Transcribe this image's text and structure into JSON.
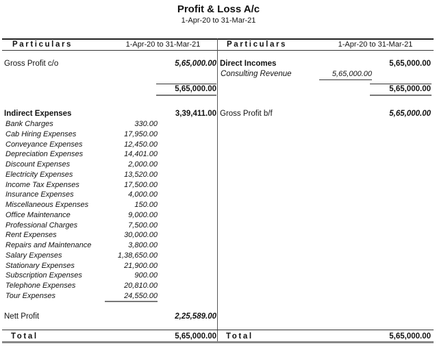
{
  "report": {
    "title": "Profit & Loss A/c",
    "period": "1-Apr-20 to 31-Mar-21"
  },
  "header": {
    "left_particulars": "Particulars",
    "left_period": "1-Apr-20 to 31-Mar-21",
    "right_particulars": "Particulars",
    "right_period": "1-Apr-20 to 31-Mar-21"
  },
  "left": {
    "gross_profit_co": {
      "label": "Gross Profit c/o",
      "amount": "5,65,000.00"
    },
    "subtotal": "5,65,000.00",
    "indirect_expenses": {
      "label": "Indirect Expenses",
      "amount": "3,39,411.00",
      "items": [
        {
          "label": "Bank Charges",
          "amount": "330.00"
        },
        {
          "label": "Cab Hiring Expenses",
          "amount": "17,950.00"
        },
        {
          "label": "Conveyance Expenses",
          "amount": "12,450.00"
        },
        {
          "label": "Depreciation Expenses",
          "amount": "14,401.00"
        },
        {
          "label": "Discount Expenses",
          "amount": "2,000.00"
        },
        {
          "label": "Electricity Expenses",
          "amount": "13,520.00"
        },
        {
          "label": "Income Tax Expenses",
          "amount": "17,500.00"
        },
        {
          "label": "Insurance Expenses",
          "amount": "4,000.00"
        },
        {
          "label": "Miscellaneous Expenses",
          "amount": "150.00"
        },
        {
          "label": "Office Maintenance",
          "amount": "9,000.00"
        },
        {
          "label": "Professional Charges",
          "amount": "7,500.00"
        },
        {
          "label": "Rent Expenses",
          "amount": "30,000.00"
        },
        {
          "label": "Repairs and Maintenance",
          "amount": "3,800.00"
        },
        {
          "label": "Salary Expenses",
          "amount": "1,38,650.00"
        },
        {
          "label": "Stationary Expenses",
          "amount": "21,900.00"
        },
        {
          "label": "Subscription Expenses",
          "amount": "900.00"
        },
        {
          "label": "Telephone Expenses",
          "amount": "20,810.00"
        },
        {
          "label": "Tour Expenses",
          "amount": "24,550.00"
        }
      ]
    },
    "nett_profit": {
      "label": "Nett Profit",
      "amount": "2,25,589.00"
    },
    "total": {
      "label": "Total",
      "amount": "5,65,000.00"
    }
  },
  "right": {
    "direct_incomes": {
      "label": "Direct Incomes",
      "amount": "5,65,000.00",
      "items": [
        {
          "label": "Consulting Revenue",
          "amount": "5,65,000.00"
        }
      ]
    },
    "subtotal": "5,65,000.00",
    "gross_profit_bf": {
      "label": "Gross Profit b/f",
      "amount": "5,65,000.00"
    },
    "total": {
      "label": "Total",
      "amount": "5,65,000.00"
    }
  }
}
